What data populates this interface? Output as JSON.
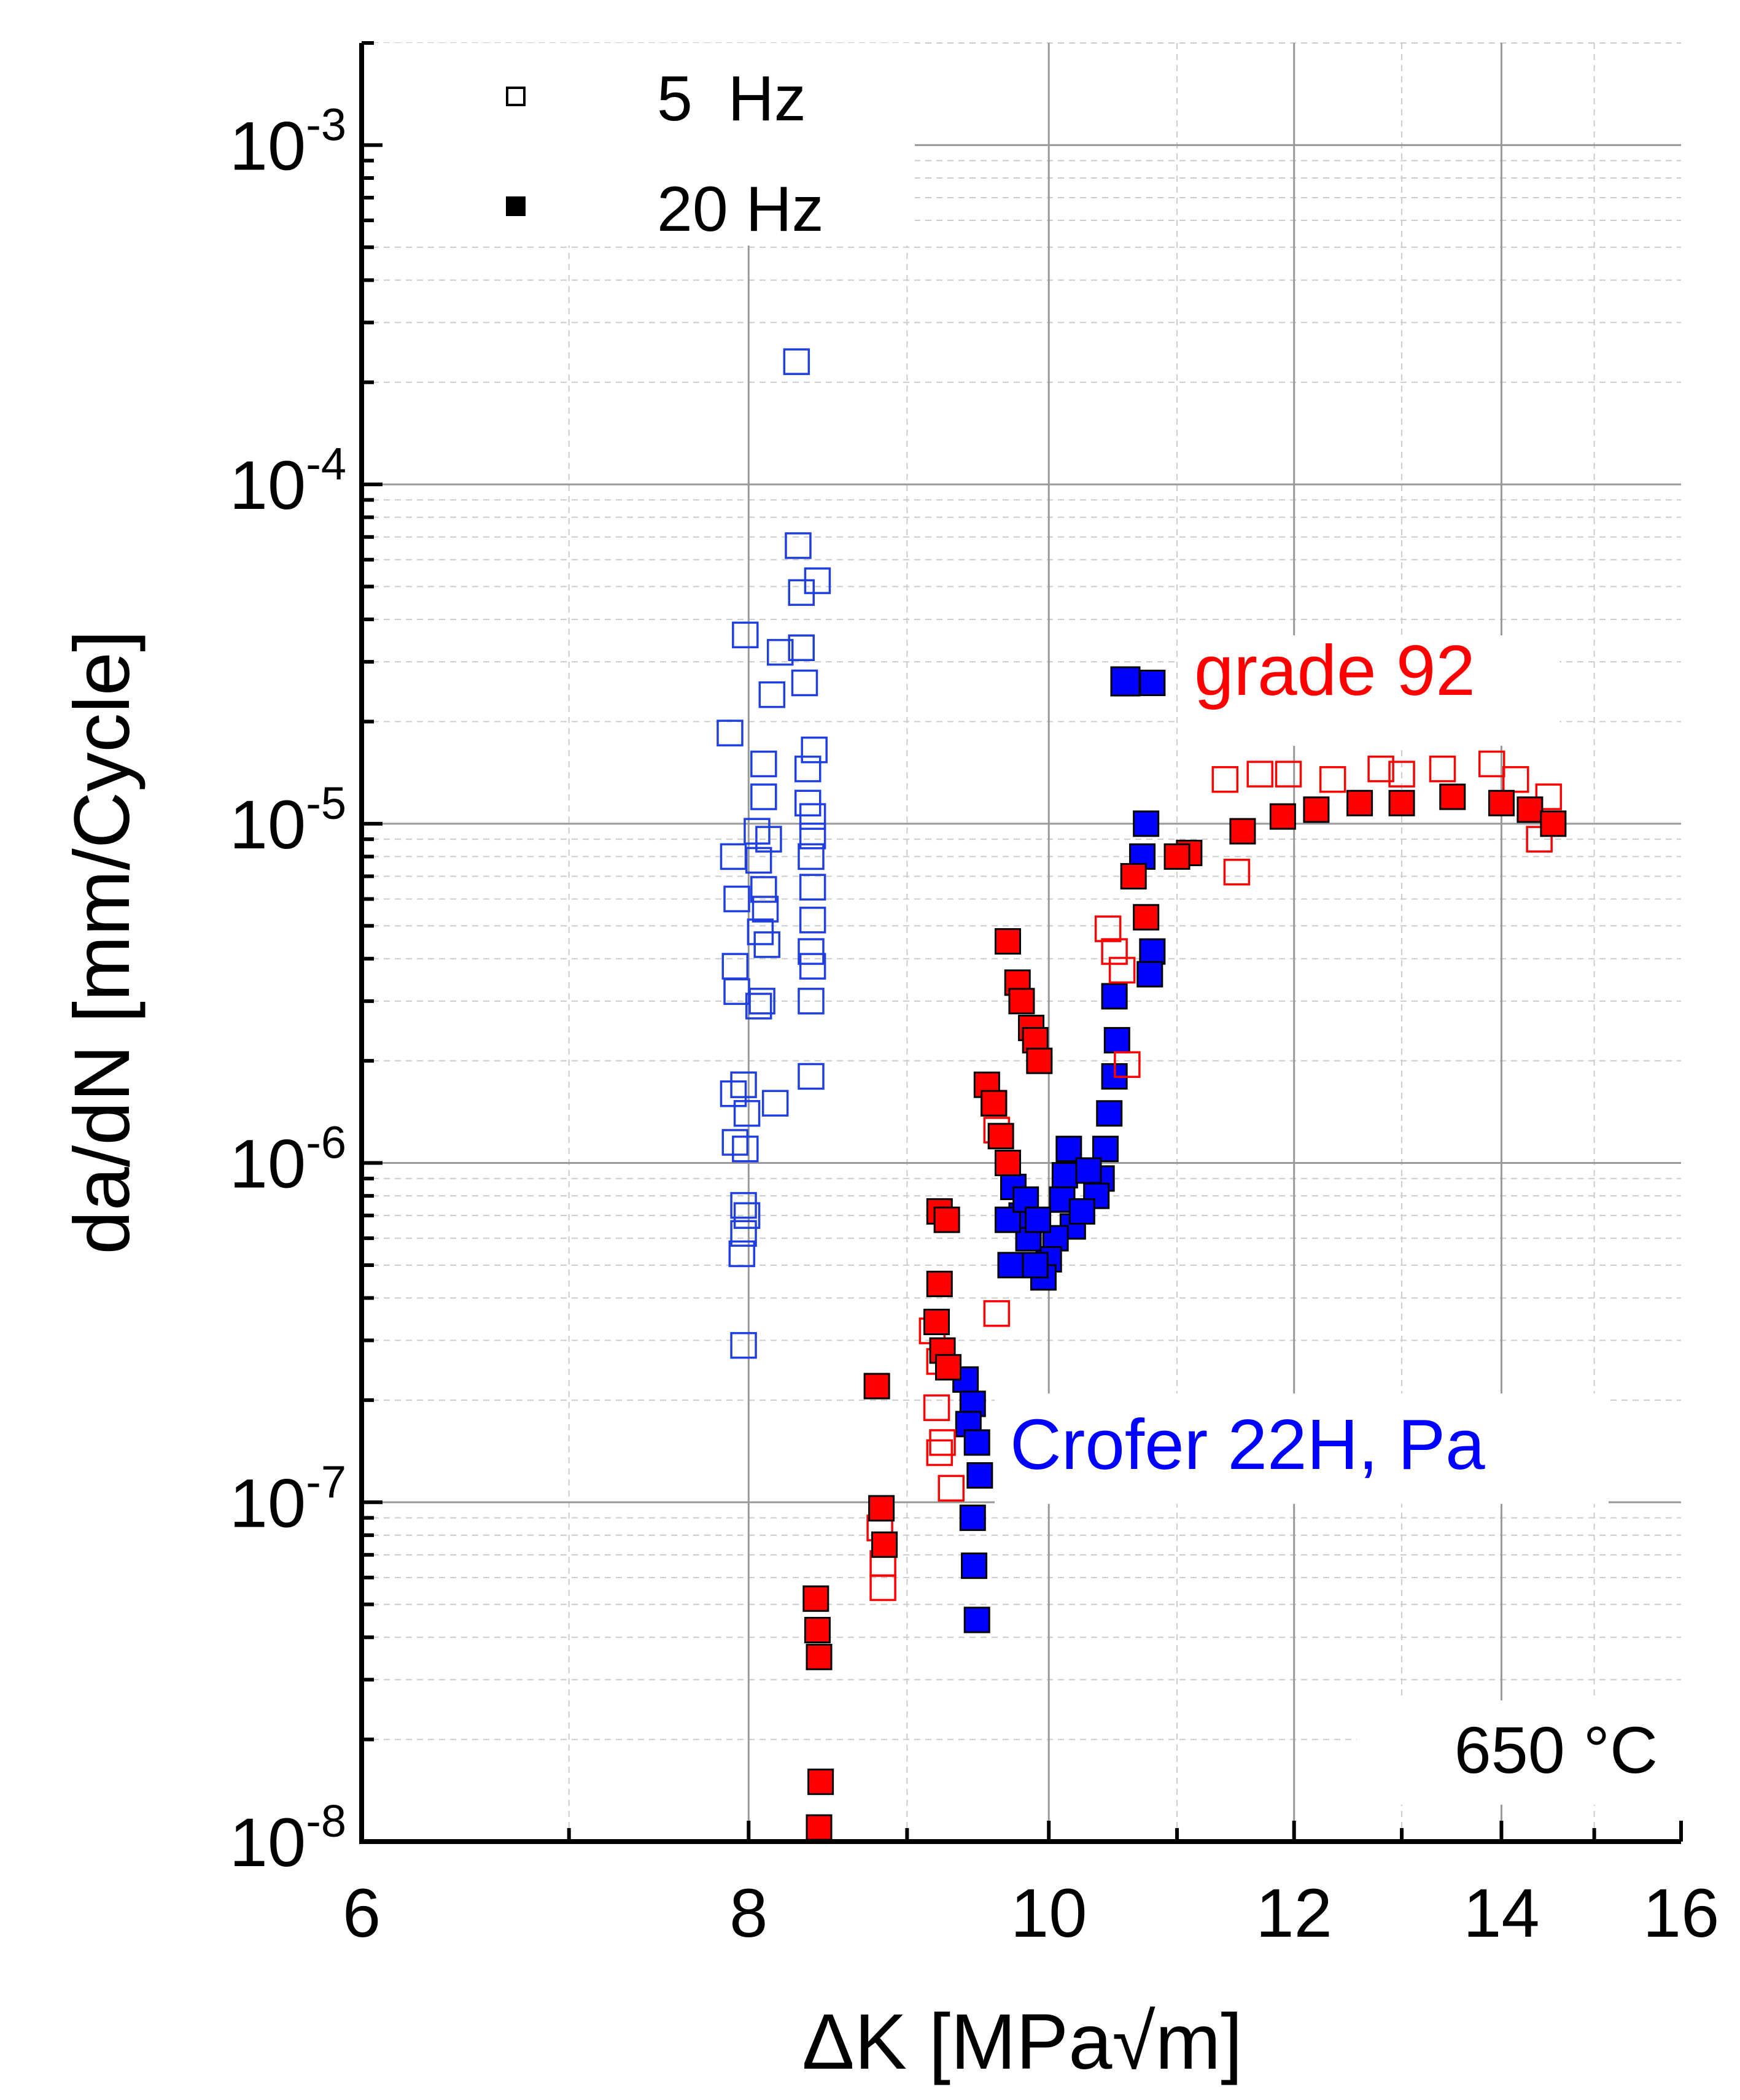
{
  "chart_data": {
    "type": "scatter",
    "xlabel": "ΔK [MPa√m]",
    "ylabel": "da/dN [mm/Cycle]",
    "xlim": [
      6,
      16
    ],
    "ylim": [
      1e-08,
      0.002
    ],
    "yscale": "log",
    "xscale": "log",
    "x_ticks": [
      6,
      8,
      10,
      12,
      14,
      16
    ],
    "y_ticks": [
      {
        "value": 0.001,
        "base": "10",
        "exp": "-3"
      },
      {
        "value": 0.0001,
        "base": "10",
        "exp": "-4"
      },
      {
        "value": 1e-05,
        "base": "10",
        "exp": "-5"
      },
      {
        "value": 1e-06,
        "base": "10",
        "exp": "-6"
      },
      {
        "value": 1e-07,
        "base": "10",
        "exp": "-7"
      },
      {
        "value": 1e-08,
        "base": "10",
        "exp": "-8"
      }
    ],
    "grid": true,
    "legend": {
      "placement": "top-left",
      "entries": [
        {
          "label": "5  Hz",
          "marker": "open-square"
        },
        {
          "label": "20 Hz",
          "marker": "filled-square"
        }
      ]
    },
    "annotations": {
      "temperature": "650 °C",
      "grade92_label": "grade 92",
      "crofer_label": "Crofer 22H, Pa"
    },
    "colors": {
      "grade92": "#ff0000",
      "crofer": "#0000ff",
      "axis": "#000000",
      "grid_major": "#999999",
      "grid_minor": "#cccccc"
    },
    "series": [
      {
        "material": "Crofer 22H",
        "frequency": "5 Hz",
        "marker": "open-square",
        "color": "#1f3fe0",
        "points": [
          [
            8.29,
            0.00023
          ],
          [
            8.3,
            6.6e-05
          ],
          [
            8.42,
            5.2e-05
          ],
          [
            8.32,
            4.8e-05
          ],
          [
            7.98,
            3.6e-05
          ],
          [
            8.19,
            3.2e-05
          ],
          [
            8.32,
            3.3e-05
          ],
          [
            8.34,
            2.6e-05
          ],
          [
            8.14,
            2.4e-05
          ],
          [
            7.89,
            1.85e-05
          ],
          [
            8.4,
            1.65e-05
          ],
          [
            8.09,
            1.5e-05
          ],
          [
            8.36,
            1.45e-05
          ],
          [
            8.09,
            1.2e-05
          ],
          [
            8.36,
            1.15e-05
          ],
          [
            8.39,
            1.05e-05
          ],
          [
            8.05,
            9.5e-06
          ],
          [
            8.12,
            9e-06
          ],
          [
            8.39,
            9.2e-06
          ],
          [
            7.91,
            8e-06
          ],
          [
            8.06,
            7.8e-06
          ],
          [
            8.38,
            8e-06
          ],
          [
            8.39,
            6.5e-06
          ],
          [
            7.93,
            6e-06
          ],
          [
            8.09,
            6.4e-06
          ],
          [
            8.1,
            5.6e-06
          ],
          [
            8.39,
            5.2e-06
          ],
          [
            8.07,
            4.8e-06
          ],
          [
            8.11,
            4.4e-06
          ],
          [
            8.38,
            4.2e-06
          ],
          [
            7.92,
            3.8e-06
          ],
          [
            8.39,
            3.8e-06
          ],
          [
            7.93,
            3.2e-06
          ],
          [
            8.08,
            3e-06
          ],
          [
            8.38,
            3e-06
          ],
          [
            8.06,
            2.9e-06
          ],
          [
            7.97,
            1.7e-06
          ],
          [
            8.38,
            1.8e-06
          ],
          [
            7.91,
            1.6e-06
          ],
          [
            8.16,
            1.5e-06
          ],
          [
            7.99,
            1.4e-06
          ],
          [
            7.92,
            1.15e-06
          ],
          [
            7.98,
            1.1e-06
          ],
          [
            7.97,
            7.5e-07
          ],
          [
            7.99,
            7e-07
          ],
          [
            7.97,
            6.2e-07
          ],
          [
            7.96,
            5.4e-07
          ],
          [
            7.97,
            2.9e-07
          ]
        ]
      },
      {
        "material": "Crofer 22H",
        "frequency": "20 Hz",
        "marker": "filled-square",
        "color": "#0000ff",
        "points": [
          [
            10.8,
            2.6e-05
          ],
          [
            10.75,
            1e-05
          ],
          [
            10.72,
            8e-06
          ],
          [
            10.8,
            4.2e-06
          ],
          [
            10.78,
            3.6e-06
          ],
          [
            10.5,
            3.1e-06
          ],
          [
            10.52,
            2.3e-06
          ],
          [
            10.5,
            1.8e-06
          ],
          [
            10.46,
            1.4e-06
          ],
          [
            10.43,
            1.1e-06
          ],
          [
            10.4,
            9e-07
          ],
          [
            10.36,
            8e-07
          ],
          [
            10.15,
            1.1e-06
          ],
          [
            10.12,
            9.2e-07
          ],
          [
            10.1,
            7.8e-07
          ],
          [
            10.18,
            6.5e-07
          ],
          [
            10.05,
            6e-07
          ],
          [
            10.0,
            5.2e-07
          ],
          [
            9.96,
            4.6e-07
          ],
          [
            9.9,
            5e-07
          ],
          [
            9.85,
            6e-07
          ],
          [
            9.8,
            7e-07
          ],
          [
            9.74,
            8.5e-07
          ],
          [
            9.7,
            6.8e-07
          ],
          [
            9.72,
            5e-07
          ],
          [
            9.83,
            7.8e-07
          ],
          [
            9.92,
            6.8e-07
          ],
          [
            10.25,
            7.2e-07
          ],
          [
            10.3,
            9.5e-07
          ],
          [
            9.4,
            2.3e-07
          ],
          [
            9.45,
            1.95e-07
          ],
          [
            9.42,
            1.7e-07
          ],
          [
            9.48,
            1.5e-07
          ],
          [
            9.5,
            1.2e-07
          ],
          [
            9.45,
            9e-08
          ],
          [
            9.46,
            6.5e-08
          ],
          [
            9.48,
            4.5e-08
          ]
        ]
      },
      {
        "material": "grade 92",
        "frequency": "5 Hz",
        "marker": "open-square",
        "color": "#ff0000",
        "points": [
          [
            11.4,
            1.35e-05
          ],
          [
            11.7,
            1.4e-05
          ],
          [
            11.95,
            1.4e-05
          ],
          [
            12.35,
            1.35e-05
          ],
          [
            12.8,
            1.45e-05
          ],
          [
            13.0,
            1.4e-05
          ],
          [
            13.4,
            1.45e-05
          ],
          [
            13.9,
            1.5e-05
          ],
          [
            14.15,
            1.35e-05
          ],
          [
            14.5,
            1.2e-05
          ],
          [
            14.4,
            9e-06
          ],
          [
            11.5,
            7.2e-06
          ],
          [
            10.45,
            4.9e-06
          ],
          [
            10.5,
            4.2e-06
          ],
          [
            10.56,
            3.7e-06
          ],
          [
            10.6,
            1.95e-06
          ],
          [
            9.6,
            1.5e-06
          ],
          [
            9.62,
            1.25e-06
          ],
          [
            9.62,
            3.6e-07
          ],
          [
            9.17,
            3.2e-07
          ],
          [
            9.22,
            2.6e-07
          ],
          [
            9.2,
            1.9e-07
          ],
          [
            9.24,
            1.5e-07
          ],
          [
            9.22,
            1.4e-07
          ],
          [
            9.3,
            1.1e-07
          ],
          [
            8.82,
            8.4e-08
          ],
          [
            8.84,
            6.6e-08
          ],
          [
            8.84,
            5.6e-08
          ]
        ]
      },
      {
        "material": "grade 92",
        "frequency": "20 Hz",
        "marker": "filled-square",
        "color": "#ff0000",
        "points": [
          [
            11.9,
            1.05e-05
          ],
          [
            12.2,
            1.1e-05
          ],
          [
            12.6,
            1.15e-05
          ],
          [
            13.0,
            1.15e-05
          ],
          [
            13.5,
            1.2e-05
          ],
          [
            14.0,
            1.15e-05
          ],
          [
            14.3,
            1.1e-05
          ],
          [
            14.55,
            1e-05
          ],
          [
            11.55,
            9.5e-06
          ],
          [
            11.1,
            8.2e-06
          ],
          [
            11.0,
            8e-06
          ],
          [
            10.65,
            7e-06
          ],
          [
            10.75,
            5.3e-06
          ],
          [
            9.7,
            4.5e-06
          ],
          [
            9.77,
            3.4e-06
          ],
          [
            9.8,
            3e-06
          ],
          [
            9.87,
            2.5e-06
          ],
          [
            9.9,
            2.3e-06
          ],
          [
            9.93,
            2e-06
          ],
          [
            9.55,
            1.7e-06
          ],
          [
            9.6,
            1.5e-06
          ],
          [
            9.65,
            1.2e-06
          ],
          [
            9.7,
            1e-06
          ],
          [
            9.22,
            7.2e-07
          ],
          [
            9.27,
            6.8e-07
          ],
          [
            9.22,
            4.4e-07
          ],
          [
            9.2,
            3.4e-07
          ],
          [
            9.24,
            2.8e-07
          ],
          [
            9.28,
            2.5e-07
          ],
          [
            8.8,
            2.2e-07
          ],
          [
            8.83,
            9.6e-08
          ],
          [
            8.85,
            7.5e-08
          ],
          [
            8.41,
            5.2e-08
          ],
          [
            8.42,
            4.2e-08
          ],
          [
            8.43,
            3.5e-08
          ],
          [
            8.44,
            1.5e-08
          ],
          [
            8.43,
            1.1e-08
          ]
        ]
      }
    ]
  }
}
